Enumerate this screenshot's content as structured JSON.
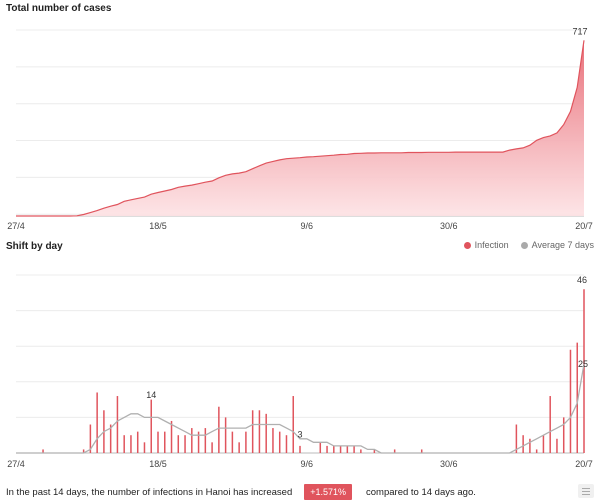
{
  "chart_data": [
    {
      "type": "area",
      "title": "Total number of cases",
      "x_ticks": [
        "27/4",
        "18/5",
        "9/6",
        "30/6",
        "20/7"
      ],
      "x": [
        "27/4",
        "28/4",
        "29/4",
        "30/4",
        "1/5",
        "2/5",
        "3/5",
        "4/5",
        "5/5",
        "6/5",
        "7/5",
        "8/5",
        "9/5",
        "10/5",
        "11/5",
        "12/5",
        "13/5",
        "14/5",
        "15/5",
        "16/5",
        "17/5",
        "18/5",
        "19/5",
        "20/5",
        "21/5",
        "22/5",
        "23/5",
        "24/5",
        "25/5",
        "26/5",
        "27/5",
        "28/5",
        "29/5",
        "30/5",
        "31/5",
        "1/6",
        "2/6",
        "3/6",
        "4/6",
        "5/6",
        "6/6",
        "7/6",
        "8/6",
        "9/6",
        "10/6",
        "11/6",
        "12/6",
        "13/6",
        "14/6",
        "15/6",
        "16/6",
        "17/6",
        "18/6",
        "19/6",
        "20/6",
        "21/6",
        "22/6",
        "23/6",
        "24/6",
        "25/6",
        "26/6",
        "27/6",
        "28/6",
        "29/6",
        "30/6",
        "1/7",
        "2/7",
        "3/7",
        "4/7",
        "5/7",
        "6/7",
        "7/7",
        "8/7",
        "9/7",
        "10/7",
        "11/7",
        "12/7",
        "13/7",
        "14/7",
        "15/7",
        "16/7",
        "17/7",
        "18/7",
        "19/7",
        "20/7"
      ],
      "values": [
        0,
        0,
        0,
        0,
        0,
        0,
        0,
        0,
        0,
        1,
        6,
        14,
        22,
        32,
        40,
        47,
        60,
        66,
        72,
        77,
        89,
        96,
        102,
        108,
        117,
        122,
        126,
        132,
        138,
        143,
        156,
        166,
        172,
        175,
        181,
        193,
        205,
        216,
        223,
        229,
        234,
        236,
        238,
        241,
        242,
        244,
        246,
        248,
        251,
        252,
        255,
        256,
        257,
        257,
        258,
        258,
        258,
        258,
        259,
        259,
        259,
        260,
        260,
        260,
        260,
        261,
        261,
        261,
        261,
        261,
        261,
        261,
        261,
        269,
        274,
        278,
        289,
        309,
        320,
        327,
        339,
        373,
        427,
        525,
        717
      ],
      "annotations": [
        {
          "x": "20/7",
          "label": "717"
        }
      ],
      "ylim": [
        0,
        800
      ],
      "grid": true
    },
    {
      "type": "bar",
      "title": "Shift by day",
      "legend": "top-right",
      "x_ticks": [
        "27/4",
        "18/5",
        "9/6",
        "30/6",
        "20/7"
      ],
      "series": [
        {
          "name": "Infection",
          "color": "#e0545d",
          "values": [
            0,
            0,
            0,
            0,
            1,
            0,
            0,
            0,
            0,
            0,
            1,
            8,
            17,
            12,
            8,
            16,
            5,
            5,
            6,
            3,
            15,
            6,
            6,
            9,
            5,
            5,
            7,
            6,
            7,
            3,
            13,
            10,
            6,
            3,
            6,
            12,
            12,
            11,
            7,
            6,
            5,
            16,
            2,
            0,
            0,
            3,
            2,
            2,
            2,
            2,
            2,
            1,
            0,
            1,
            0,
            0,
            1,
            0,
            0,
            0,
            1,
            0,
            0,
            0,
            0,
            0,
            0,
            0,
            0,
            0,
            0,
            0,
            0,
            0,
            8,
            5,
            4,
            1,
            5,
            16,
            4,
            10,
            29,
            31,
            46
          ]
        },
        {
          "name": "Average 7 days",
          "color": "#aaaaaa",
          "values": [
            0,
            0,
            0,
            0,
            0,
            0,
            0,
            0,
            0,
            0,
            0,
            1,
            4,
            6,
            7,
            9,
            10,
            11,
            11,
            10,
            10,
            10,
            9,
            8,
            7,
            6,
            5,
            5,
            5,
            6,
            7,
            7,
            7,
            7,
            7,
            8,
            8,
            8,
            8,
            8,
            7,
            6,
            4,
            4,
            3,
            3,
            3,
            2,
            2,
            2,
            2,
            2,
            1,
            1,
            0,
            0,
            0,
            0,
            0,
            0,
            0,
            0,
            0,
            0,
            0,
            0,
            0,
            0,
            0,
            0,
            0,
            0,
            0,
            0,
            1,
            2,
            3,
            4,
            5,
            6,
            7,
            8,
            10,
            14,
            25
          ]
        }
      ],
      "annotations": [
        {
          "x": "17/5",
          "label": "14"
        },
        {
          "x": "8/6",
          "label": "3"
        },
        {
          "x": "20/7",
          "label": "46"
        },
        {
          "x": "20/7",
          "label": "25"
        }
      ],
      "ylim": [
        0,
        50
      ],
      "grid": true
    }
  ],
  "footer": {
    "text_before": "In the past 14 days, the number of infections in Hanoi has increased",
    "badge": "+1.571%",
    "text_after": "compared to 14 days ago."
  },
  "menu_icon": "menu-icon"
}
